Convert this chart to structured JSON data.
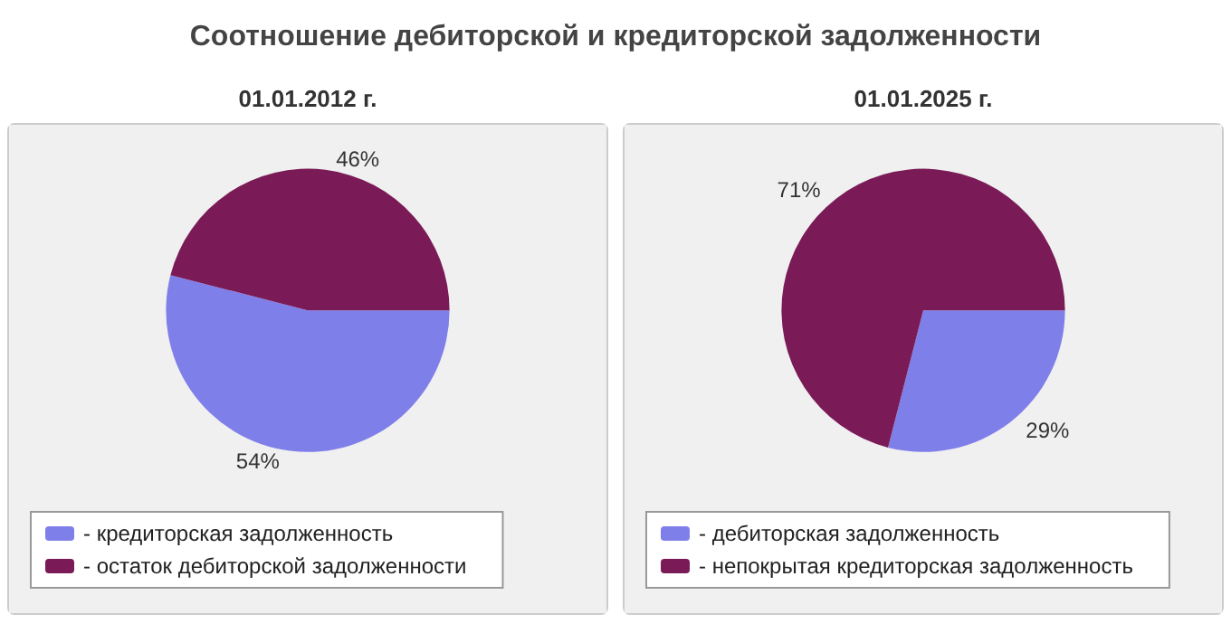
{
  "chart_data": [
    {
      "type": "pie",
      "title": "01.01.2012 г.",
      "annotations": [
        "Соотношение дебиторской и кредиторской задолженности"
      ],
      "categories": [
        "- кредиторская задолженность",
        "- остаток дебиторской задолженности"
      ],
      "values": [
        54,
        46
      ],
      "value_labels": [
        "54%",
        "46%"
      ],
      "colors": [
        "#7f7fea",
        "#7a1a57"
      ],
      "legend": "bottom"
    },
    {
      "type": "pie",
      "title": "01.01.2025 г.",
      "categories": [
        "- дебиторская задолженность",
        "- непокрытая кредиторская задолженность"
      ],
      "values": [
        29,
        71
      ],
      "value_labels": [
        "29%",
        "71%"
      ],
      "colors": [
        "#7f7fea",
        "#7a1a57"
      ],
      "legend": "bottom"
    }
  ]
}
